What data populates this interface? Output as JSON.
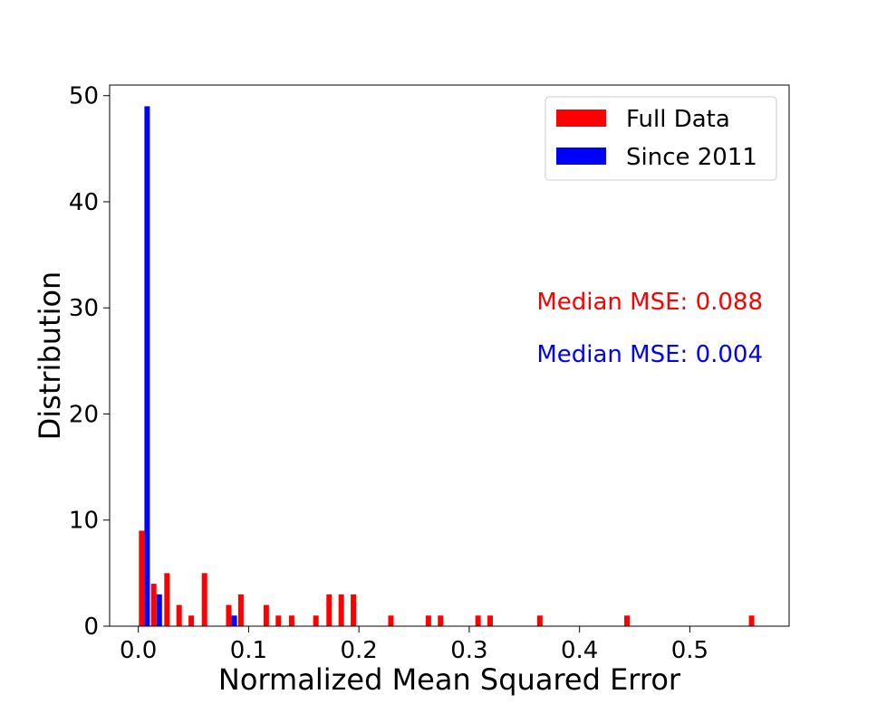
{
  "chart_data": {
    "type": "bar",
    "xlabel": "Normalized Mean Squared Error",
    "ylabel": "Distribution",
    "xlim": [
      -0.026,
      0.59
    ],
    "ylim": [
      0,
      51
    ],
    "xticks": [
      0.0,
      0.1,
      0.2,
      0.3,
      0.4,
      0.5
    ],
    "xtick_labels": [
      "0.0",
      "0.1",
      "0.2",
      "0.3",
      "0.4",
      "0.5"
    ],
    "yticks": [
      0,
      10,
      20,
      30,
      40,
      50
    ],
    "ytick_labels": [
      "0",
      "10",
      "20",
      "30",
      "40",
      "50"
    ],
    "grid": false,
    "legend_position": "top-right",
    "colors": {
      "full": "#ff0000",
      "since": "#0000ff"
    },
    "series": [
      {
        "name": "Full Data",
        "color": "#ff0000",
        "x": [
          0.003,
          0.014,
          0.026,
          0.037,
          0.048,
          0.06,
          0.082,
          0.093,
          0.116,
          0.127,
          0.139,
          0.161,
          0.173,
          0.184,
          0.195,
          0.229,
          0.263,
          0.274,
          0.308,
          0.319,
          0.364,
          0.443,
          0.556
        ],
        "values": [
          9,
          4,
          5,
          2,
          1,
          5,
          2,
          3,
          2,
          1,
          1,
          1,
          3,
          3,
          3,
          1,
          1,
          1,
          1,
          1,
          1,
          1,
          1
        ]
      },
      {
        "name": "Since 2011",
        "color": "#0000ff",
        "x": [
          0.008,
          0.019,
          0.087
        ],
        "values": [
          49,
          3,
          1
        ]
      }
    ],
    "annotations": [
      {
        "text": "Median MSE: 0.088",
        "color": "#ff0000"
      },
      {
        "text": "Median MSE: 0.004",
        "color": "#0000ff"
      }
    ]
  }
}
